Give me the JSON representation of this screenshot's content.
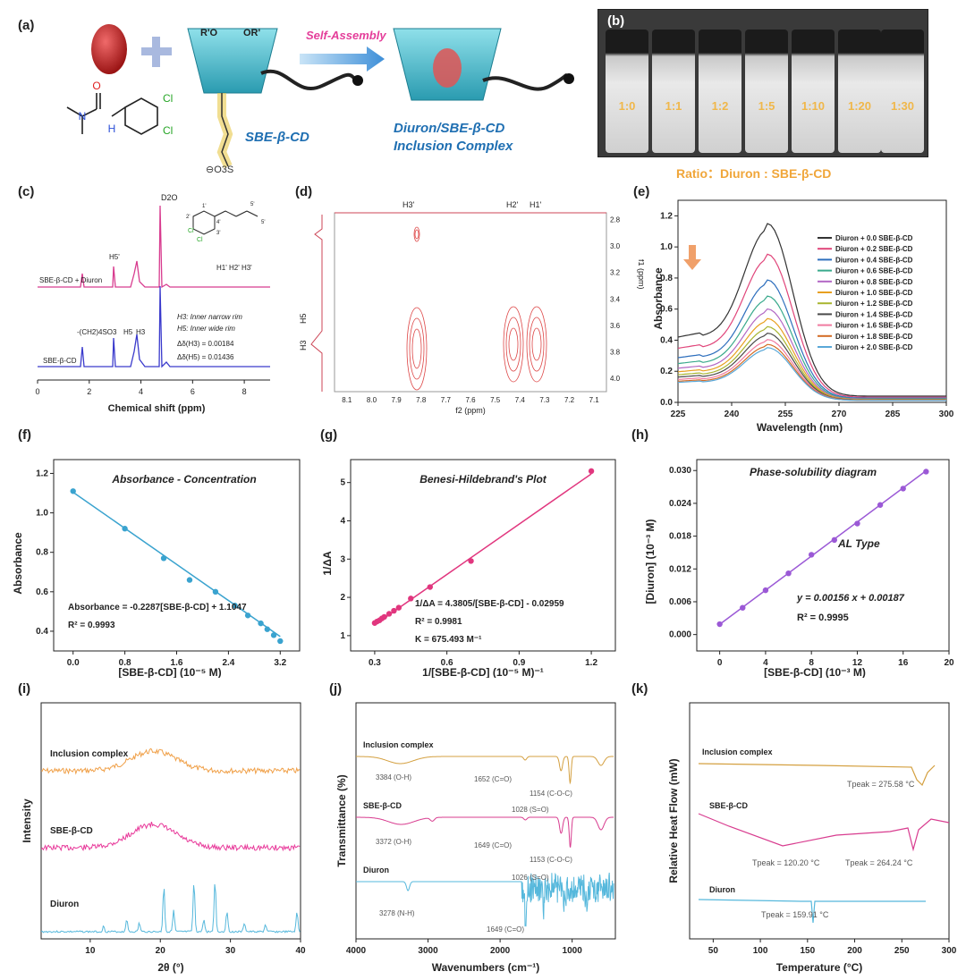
{
  "labels": {
    "a": "(a)",
    "b": "(b)",
    "c": "(c)",
    "d": "(d)",
    "e": "(e)",
    "f": "(f)",
    "g": "(g)",
    "h": "(h)",
    "i": "(i)",
    "j": "(j)",
    "k": "(k)"
  },
  "panel_a": {
    "substituent_r1": "R'O",
    "substituent_r2": "OR'",
    "sulfonate": "⊖O3S",
    "arrow_text": "Self-Assembly",
    "sbe_label": "SBE-β-CD",
    "complex_line1": "Diuron/SBE-β-CD",
    "complex_line2": "Inclusion Complex",
    "chloro1": "Cl",
    "chloro2": "Cl",
    "nh": "H",
    "n": "N",
    "o": "O",
    "colors": {
      "accent_blue": "#1f6fb2",
      "pink": "#e43e9a",
      "teal": "#7fd1df"
    }
  },
  "panel_b": {
    "vials": [
      "1:0",
      "1:1",
      "1:2",
      "1:5",
      "1:10",
      "1:20",
      "1:30"
    ],
    "ratio_caption": "Ratio：Diuron : SBE-β-CD"
  },
  "panel_c": {
    "d2o": "D2O",
    "h5prime": "H5'",
    "top_trace": "SBE-β-CD + Diuron",
    "bottom_trace": "SBE-β-CD",
    "group_label": "-(CH2)4SO3",
    "h5": "H5",
    "h3": "H3",
    "h_arom": "H1' H2' H3'",
    "note1": "H3: Inner narrow rim",
    "note2": "H5: Inner wide rim",
    "delta1": "Δδ(H3) = 0.00184",
    "delta2": "Δδ(H5) = 0.01436",
    "xlabel": "Chemical shift (ppm)",
    "xticks": [
      "0",
      "2",
      "4",
      "6",
      "8"
    ],
    "struct_labels": [
      "1'",
      "2'",
      "3'",
      "4'",
      "5'",
      "5'",
      "Cl",
      "Cl"
    ]
  },
  "panel_d": {
    "h3p": "H3'",
    "h2p": "H2'",
    "h1p": "H1'",
    "yleft1": "H5",
    "yleft2": "H3",
    "xlabel": "f2 (ppm)",
    "ylabel": "f1 (ppm)",
    "xticks": [
      "8.1",
      "8.0",
      "7.9",
      "7.8",
      "7.7",
      "7.6",
      "7.5",
      "7.4",
      "7.3",
      "7.2",
      "7.1"
    ],
    "yticks": [
      "2.8",
      "3.0",
      "3.2",
      "3.4",
      "3.6",
      "3.8",
      "4.0"
    ]
  },
  "panel_e": {
    "ylabel": "Absorbance",
    "xlabel": "Wavelength (nm)",
    "xticks": [
      "225",
      "240",
      "255",
      "270",
      "285",
      "300"
    ],
    "yticks": [
      "0.0",
      "0.2",
      "0.4",
      "0.6",
      "0.8",
      "1.0",
      "1.2"
    ],
    "legend": [
      "Diuron + 0.0 SBE-β-CD",
      "Diuron + 0.2 SBE-β-CD",
      "Diuron + 0.4 SBE-β-CD",
      "Diuron + 0.6 SBE-β-CD",
      "Diuron + 0.8 SBE-β-CD",
      "Diuron + 1.0 SBE-β-CD",
      "Diuron + 1.2 SBE-β-CD",
      "Diuron + 1.4 SBE-β-CD",
      "Diuron + 1.6 SBE-β-CD",
      "Diuron + 1.8 SBE-β-CD",
      "Diuron + 2.0 SBE-β-CD"
    ],
    "colors": [
      "#333333",
      "#e0457a",
      "#2e6fbd",
      "#39a98c",
      "#b267c4",
      "#e8a020",
      "#a8b530",
      "#4a4a4a",
      "#f07aa0",
      "#d36b24",
      "#5aa8d8"
    ],
    "peaks": [
      1.11,
      0.92,
      0.76,
      0.66,
      0.58,
      0.52,
      0.47,
      0.43,
      0.39,
      0.36,
      0.34
    ]
  },
  "panel_f": {
    "title": "Absorbance - Concentration",
    "ylabel": "Absorbance",
    "xlabel": "[SBE-β-CD] (10⁻⁵ M)",
    "eq": "Absorbance = -0.2287[SBE-β-CD] + 1.1047",
    "r2": "R² = 0.9993",
    "xticks": [
      "0.0",
      "0.8",
      "1.6",
      "2.4",
      "3.2"
    ],
    "yticks": [
      "0.4",
      "0.6",
      "0.8",
      "1.0",
      "1.2"
    ],
    "x": [
      0,
      0.8,
      1.4,
      1.8,
      2.2,
      2.5,
      2.7,
      2.9,
      3.0,
      3.1,
      3.2
    ],
    "y": [
      1.11,
      0.92,
      0.77,
      0.66,
      0.6,
      0.53,
      0.48,
      0.44,
      0.41,
      0.38,
      0.35
    ],
    "color": "#3aa3cf"
  },
  "panel_g": {
    "title": "Benesi-Hildebrand's Plot",
    "ylabel": "1/ΔA",
    "xlabel": "1/[SBE-β-CD] (10⁻⁵ M)⁻¹",
    "eq": "1/ΔA = 4.3805/[SBE-β-CD] - 0.02959",
    "r2": "R² = 0.9981",
    "k": "K = 675.493 M⁻¹",
    "xticks": [
      "0.3",
      "0.6",
      "0.9",
      "1.2"
    ],
    "yticks": [
      "1",
      "2",
      "3",
      "4",
      "5"
    ],
    "x": [
      0.3,
      0.31,
      0.32,
      0.33,
      0.34,
      0.36,
      0.38,
      0.4,
      0.45,
      0.53,
      0.7,
      1.2
    ],
    "y": [
      1.33,
      1.37,
      1.4,
      1.45,
      1.49,
      1.57,
      1.65,
      1.73,
      1.97,
      2.27,
      2.95,
      5.3
    ],
    "color": "#e1367e"
  },
  "panel_h": {
    "title": "Phase-solubility diagram",
    "type_label": "AL Type",
    "ylabel": "[Diuron] (10⁻³ M)",
    "xlabel": "[SBE-β-CD] (10⁻³ M)",
    "eq": "y = 0.00156 x + 0.00187",
    "r2": "R² = 0.9995",
    "xticks": [
      "0",
      "4",
      "8",
      "12",
      "16",
      "20"
    ],
    "yticks": [
      "0.000",
      "0.006",
      "0.012",
      "0.018",
      "0.024",
      "0.030"
    ],
    "x": [
      0,
      2,
      4,
      6,
      8,
      10,
      12,
      14,
      16,
      18
    ],
    "y": [
      0.0019,
      0.0049,
      0.0081,
      0.0112,
      0.0146,
      0.0173,
      0.0203,
      0.0237,
      0.0267,
      0.0298
    ],
    "color": "#9b59d6"
  },
  "panel_i": {
    "ylabel": "Intensity",
    "xlabel": "2θ (°)",
    "xticks": [
      "10",
      "20",
      "30",
      "40"
    ],
    "traces": [
      "Inclusion complex",
      "SBE-β-CD",
      "Diuron"
    ],
    "colors": [
      "#f0a048",
      "#e8399a",
      "#56b8dc"
    ]
  },
  "panel_j": {
    "ylabel": "Transmittance (%)",
    "xlabel": "Wavenumbers (cm⁻¹)",
    "xticks": [
      "4000",
      "3000",
      "2000",
      "1000"
    ],
    "traces": [
      "Inclusion complex",
      "SBE-β-CD",
      "Diuron"
    ],
    "ann_ic": [
      "3384 (O-H)",
      "1652 (C=O)",
      "1154 (C-O-C)",
      "1028 (S=O)"
    ],
    "ann_sbe": [
      "3372 (O-H)",
      "1649 (C=O)",
      "1153 (C-O-C)",
      "1026 (S=O)"
    ],
    "ann_d": [
      "3278 (N-H)",
      "1649 (C=O)"
    ],
    "colors": [
      "#d4a040",
      "#d83c8f",
      "#56b8dc"
    ]
  },
  "panel_k": {
    "ylabel": "Relative Heat Flow (mW)",
    "xlabel": "Temperature (°C)",
    "xticks": [
      "50",
      "100",
      "150",
      "200",
      "250",
      "300"
    ],
    "traces": [
      "Inclusion complex",
      "SBE-β-CD",
      "Diuron"
    ],
    "peak_ic": "Tpeak = 275.58 °C",
    "peak_sbe1": "Tpeak = 120.20 °C",
    "peak_sbe2": "Tpeak = 264.24 °C",
    "peak_d": "Tpeak = 159.91 °C",
    "colors": [
      "#d4a040",
      "#d83c8f",
      "#56b8dc"
    ]
  }
}
